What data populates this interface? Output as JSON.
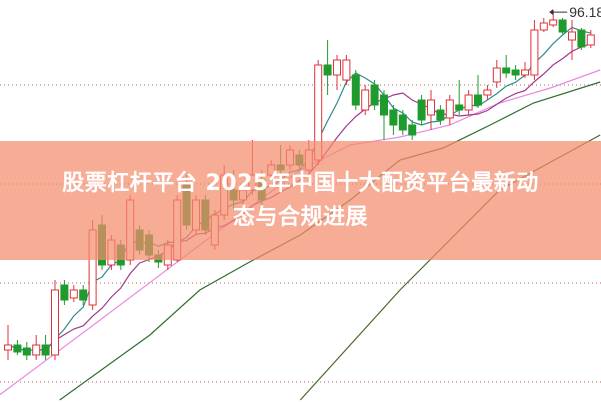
{
  "title_line1": "股票杠杆平台 2025年中国十大配资平台最新动",
  "title_line2": "态与合规进展",
  "chart_data": {
    "type": "candlestick",
    "high_label": "96.18",
    "grid": "dotted horizontal",
    "colors": {
      "up": "#e0303a",
      "down": "#1f9a2e",
      "ma5": "#2f8c8c",
      "ma10": "#a03a8c",
      "ma_pink": "#e88ae0",
      "ma_green": "#2e6e2e",
      "ma_long": "#4a6a2a"
    },
    "candles": [
      [
        28.2,
        29.2,
        33.2,
        26.2
      ],
      [
        29.2,
        27.8,
        30.2,
        27.2
      ],
      [
        28.6,
        27.2,
        29.8,
        26.2
      ],
      [
        27.2,
        29.2,
        31.2,
        26.2
      ],
      [
        29.2,
        27.2,
        31.2,
        26.2
      ],
      [
        27.2,
        40.2,
        42.2,
        26.2
      ],
      [
        41.2,
        38.2,
        42.2,
        37.2
      ],
      [
        38.6,
        40.2,
        41.2,
        37.8
      ],
      [
        40.2,
        38.2,
        41.2,
        37.2
      ],
      [
        37.2,
        52.2,
        54.2,
        36.2
      ],
      [
        53.2,
        45.2,
        55.2,
        44.2
      ],
      [
        45.2,
        50.2,
        51.2,
        44.2
      ],
      [
        49.2,
        45.2,
        50.2,
        44.2
      ],
      [
        46.2,
        58.2,
        59.2,
        45.2
      ],
      [
        52.2,
        48.2,
        53.2,
        47.2
      ],
      [
        51.2,
        47.2,
        52.2,
        45.8
      ],
      [
        47.2,
        45.8,
        48.2,
        44.6
      ],
      [
        45.2,
        49.2,
        50.2,
        44.2
      ],
      [
        46.2,
        58.2,
        59.2,
        45.8
      ],
      [
        61.2,
        53.2,
        63.2,
        52.2
      ],
      [
        52.2,
        58.2,
        59.2,
        51.2
      ],
      [
        58.2,
        52.2,
        59.2,
        51.2
      ],
      [
        49.2,
        55.2,
        56.2,
        48.2
      ],
      [
        55.2,
        63.2,
        65.2,
        54.2
      ],
      [
        60.2,
        58.2,
        64.2,
        56.2
      ],
      [
        58.2,
        60.2,
        61.2,
        57.2
      ],
      [
        60.2,
        63.2,
        70.2,
        59.2
      ],
      [
        62.2,
        58.2,
        64.2,
        57.2
      ],
      [
        63.2,
        65.2,
        66.2,
        62.2
      ],
      [
        65.2,
        64.2,
        69.2,
        63.2
      ],
      [
        65.2,
        68.2,
        69.2,
        64.2
      ],
      [
        67.2,
        65.2,
        68.2,
        64.2
      ],
      [
        64.2,
        68.2,
        70.2,
        63.8
      ],
      [
        66.2,
        85.2,
        86.2,
        65.2
      ],
      [
        85.2,
        83.2,
        90.2,
        79.2
      ],
      [
        83.2,
        86.2,
        87.2,
        80.2
      ],
      [
        82.2,
        86.2,
        87.2,
        81.2
      ],
      [
        83.2,
        77.2,
        84.2,
        76.2
      ],
      [
        76.2,
        80.2,
        81.2,
        75.2
      ],
      [
        81.2,
        77.2,
        82.2,
        76.2
      ],
      [
        79.2,
        75.2,
        80.2,
        70.2
      ],
      [
        76.2,
        73.2,
        77.2,
        71.2
      ],
      [
        75.2,
        72.2,
        76.2,
        71.2
      ],
      [
        73.2,
        71.2,
        74.2,
        70.2
      ],
      [
        78.2,
        74.2,
        79.2,
        73.2
      ],
      [
        75.2,
        78.2,
        80.2,
        72.2
      ],
      [
        76.2,
        74.2,
        77.2,
        73.2
      ],
      [
        74.6,
        78.2,
        79.2,
        73.2
      ],
      [
        77.2,
        76.2,
        82.2,
        75.2
      ],
      [
        76.2,
        79.2,
        80.2,
        75.2
      ],
      [
        79.2,
        77.2,
        83.2,
        76.6
      ],
      [
        79.2,
        80.2,
        81.2,
        78.2
      ],
      [
        81.8,
        84.6,
        86.2,
        80.6
      ],
      [
        84.6,
        83.6,
        87.2,
        82.6
      ],
      [
        84.2,
        83.2,
        85.2,
        82.2
      ],
      [
        83.2,
        84.2,
        85.8,
        82.6
      ],
      [
        83.2,
        92.2,
        94.2,
        82.2
      ],
      [
        92.2,
        93.6,
        94.6,
        91.8
      ],
      [
        93.2,
        94.2,
        96.18,
        92.8
      ],
      [
        94.2,
        91.8,
        94.6,
        91.4
      ],
      [
        90.2,
        91.8,
        94.2,
        86.2
      ],
      [
        92.2,
        88.8,
        92.6,
        88.2
      ],
      [
        89.2,
        91.2,
        92.2,
        88.6
      ]
    ],
    "ma_pink": [
      [
        -0.9,
        19.2
      ],
      [
        9.8,
        34.2
      ],
      [
        20.4,
        49.2
      ],
      [
        31.1,
        64.2
      ],
      [
        36.4,
        69.2
      ],
      [
        41.7,
        70.8
      ],
      [
        47,
        73.2
      ],
      [
        52.3,
        77.6
      ],
      [
        57.7,
        80.6
      ],
      [
        63,
        84.2
      ]
    ],
    "ma_green": [
      [
        5.5,
        18.2
      ],
      [
        15.1,
        31.2
      ],
      [
        20.4,
        40.2
      ],
      [
        25.7,
        45.8
      ],
      [
        31.1,
        51.2
      ],
      [
        36.4,
        58.2
      ],
      [
        41.7,
        66.2
      ],
      [
        46.3,
        68.6
      ],
      [
        51.3,
        73.2
      ],
      [
        55.9,
        77.6
      ],
      [
        63,
        81.8
      ]
    ],
    "ma_long": [
      [
        31.1,
        18.2
      ],
      [
        41.7,
        40.2
      ],
      [
        52.3,
        60.2
      ],
      [
        63,
        71.2
      ]
    ]
  }
}
